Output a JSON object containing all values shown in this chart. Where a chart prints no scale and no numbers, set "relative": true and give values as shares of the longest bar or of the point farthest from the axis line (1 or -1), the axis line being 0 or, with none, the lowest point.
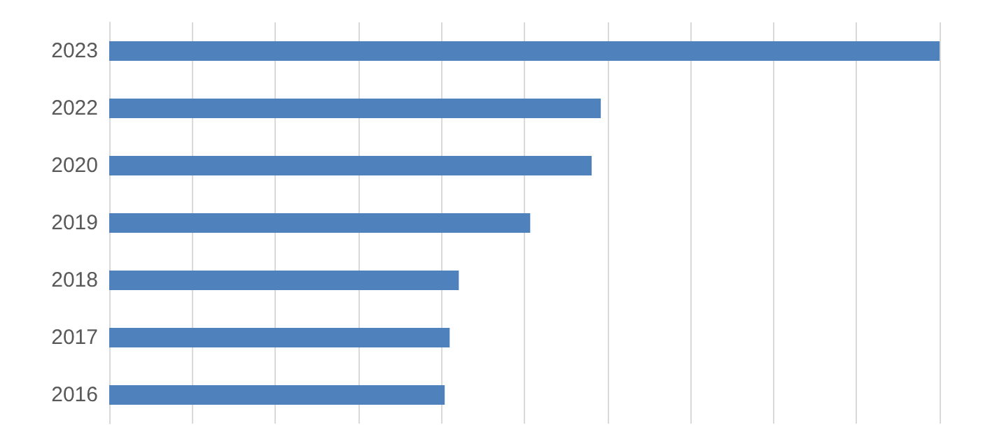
{
  "chart_data": {
    "type": "bar",
    "orientation": "horizontal",
    "relative": true,
    "grid": "x",
    "categories": [
      "2023",
      "2022",
      "2020",
      "2019",
      "2018",
      "2017",
      "2016"
    ],
    "values": [
      1,
      0.592,
      0.581,
      0.507,
      0.421,
      0.41,
      0.404
    ],
    "color": "#4f81bd"
  }
}
